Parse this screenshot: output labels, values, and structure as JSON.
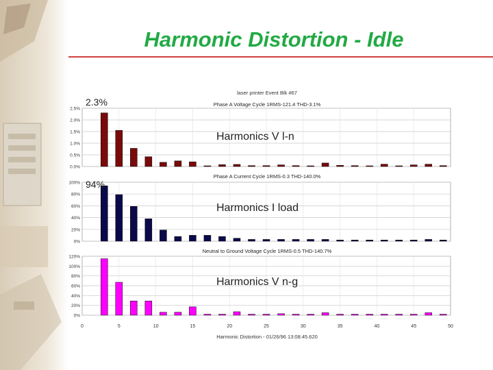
{
  "slide": {
    "title": "Harmonic Distortion - Idle"
  },
  "header": {
    "source": "laser printer Event Blk #67",
    "footer": "Harmonic Distortion - 01/26/96 13:08:45.620"
  },
  "colors": {
    "title": "#22aa44",
    "title_rule": "#d04040",
    "series_voltage": "#7a0a0a",
    "series_current": "#0a0a4a",
    "series_neutral": "#ff00ff"
  },
  "chart_data": [
    {
      "type": "bar",
      "title": "Phase A Voltage Cycle 1RMS-121.4 THD-3.1%",
      "annotation": "Harmonics V l-n",
      "callout": "2.3%",
      "yticks": [
        "2.5%",
        "2.0%",
        "1.5%",
        "1.0%",
        "0.5%",
        "0.0%"
      ],
      "ylim": [
        0,
        2.5
      ],
      "xlim": [
        0,
        50
      ],
      "grid": true,
      "series": [
        {
          "color": "#7a0a0a",
          "x": [
            3,
            5,
            7,
            9,
            11,
            13,
            15,
            17,
            19,
            21,
            23,
            25,
            27,
            29,
            31,
            33,
            35,
            37,
            39,
            41,
            43,
            45,
            47,
            49
          ],
          "values": [
            2.3,
            1.55,
            0.78,
            0.42,
            0.18,
            0.24,
            0.2,
            0.03,
            0.08,
            0.09,
            0.04,
            0.04,
            0.07,
            0.04,
            0.03,
            0.15,
            0.05,
            0.04,
            0.03,
            0.1,
            0.03,
            0.07,
            0.1,
            0.04
          ]
        }
      ]
    },
    {
      "type": "bar",
      "title": "Phase A Current Cycle 1RMS-0.3 THD-140.0%",
      "annotation": "Harmonics I load",
      "callout": "94%",
      "yticks": [
        "100%",
        "80%",
        "60%",
        "40%",
        "20%",
        "0%"
      ],
      "ylim": [
        0,
        100
      ],
      "xlim": [
        0,
        50
      ],
      "grid": true,
      "series": [
        {
          "color": "#0a0a4a",
          "x": [
            3,
            5,
            7,
            9,
            11,
            13,
            15,
            17,
            19,
            21,
            23,
            25,
            27,
            29,
            31,
            33,
            35,
            37,
            39,
            41,
            43,
            45,
            47,
            49
          ],
          "values": [
            94,
            79,
            59,
            38,
            19,
            8,
            10,
            10,
            8,
            5,
            3,
            3,
            3,
            3,
            3,
            3,
            2,
            2,
            2,
            2,
            2,
            2,
            3,
            2
          ]
        }
      ]
    },
    {
      "type": "bar",
      "title": "Neutral to Ground Voltage Cycle 1RMS-0.5 THD-140.7%",
      "annotation": "Harmonics V n-g",
      "yticks": [
        "120%",
        "100%",
        "80%",
        "60%",
        "40%",
        "20%",
        "0%"
      ],
      "ylim": [
        0,
        120
      ],
      "xlim": [
        0,
        50
      ],
      "xticks": [
        0,
        5,
        10,
        15,
        20,
        25,
        30,
        35,
        40,
        45,
        50
      ],
      "grid": true,
      "series": [
        {
          "color": "#ff00ff",
          "x": [
            3,
            5,
            7,
            9,
            11,
            13,
            15,
            17,
            19,
            21,
            23,
            25,
            27,
            29,
            31,
            33,
            35,
            37,
            39,
            41,
            43,
            45,
            47,
            49
          ],
          "values": [
            115,
            67,
            29,
            29,
            6,
            6,
            17,
            2,
            2,
            7,
            2,
            2,
            3,
            2,
            2,
            5,
            2,
            2,
            2,
            2,
            2,
            2,
            5,
            2
          ]
        }
      ]
    }
  ]
}
